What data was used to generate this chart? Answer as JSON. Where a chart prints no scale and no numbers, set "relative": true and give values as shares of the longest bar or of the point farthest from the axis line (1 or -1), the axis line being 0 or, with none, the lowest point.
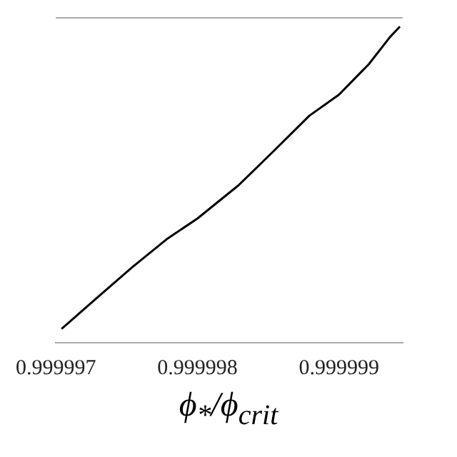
{
  "chart_data": {
    "type": "line",
    "relative": true,
    "xlabel": "ϕ$_{*}$/ϕ$_{crit}$",
    "x": [
      0.99999704,
      0.99999729,
      0.99999754,
      0.99999779,
      0.999998,
      0.99999829,
      0.99999854,
      0.99999879,
      0.999999,
      0.99999921,
      0.99999936,
      0.99999943
    ],
    "series": [
      {
        "color": "#000000",
        "values": [
          0.044,
          0.142,
          0.239,
          0.33,
          0.393,
          0.498,
          0.607,
          0.718,
          0.785,
          0.881,
          0.967,
          1
        ]
      }
    ],
    "xlim": [
      0.999997,
      0.99999945
    ],
    "xticks": [
      0.999997,
      0.999998,
      0.999999
    ],
    "grid": false,
    "legend": false,
    "marker": "none",
    "line_style": "solid"
  }
}
